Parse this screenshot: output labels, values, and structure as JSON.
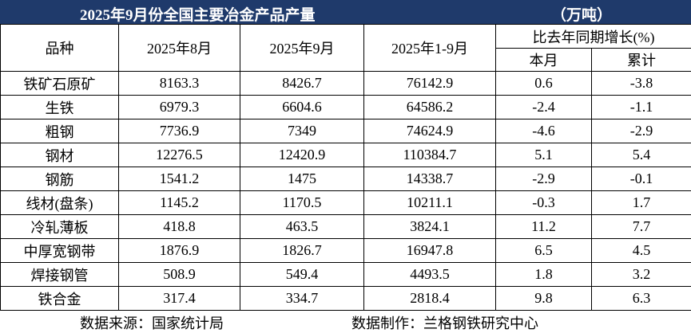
{
  "header": {
    "title": "2025年9月份全国主要冶金产品产量",
    "unit": "（万吨）"
  },
  "table": {
    "columns": [
      "品种",
      "2025年8月",
      "2025年9月",
      "2025年1-9月",
      "比去年同期增长(%)"
    ],
    "subcolumns": [
      "本月",
      "累计"
    ],
    "rows": [
      [
        "铁矿石原矿",
        "8163.3",
        "8426.7",
        "76142.9",
        "0.6",
        "-3.8"
      ],
      [
        "生铁",
        "6979.3",
        "6604.6",
        "64586.2",
        "-2.4",
        "-1.1"
      ],
      [
        "粗钢",
        "7736.9",
        "7349",
        "74624.9",
        "-4.6",
        "-2.9"
      ],
      [
        "钢材",
        "12276.5",
        "12420.9",
        "110384.7",
        "5.1",
        "5.4"
      ],
      [
        "钢筋",
        "1541.2",
        "1475",
        "14338.7",
        "-2.9",
        "-0.1"
      ],
      [
        "线材(盘条)",
        "1145.2",
        "1170.5",
        "10211.1",
        "-0.3",
        "1.7"
      ],
      [
        "冷轧薄板",
        "418.8",
        "463.5",
        "3824.1",
        "11.2",
        "7.7"
      ],
      [
        "中厚宽钢带",
        "1876.9",
        "1826.7",
        "16947.8",
        "6.5",
        "4.5"
      ],
      [
        "焊接钢管",
        "508.9",
        "549.4",
        "4493.5",
        "1.8",
        "3.2"
      ],
      [
        "铁合金",
        "317.4",
        "334.7",
        "2818.4",
        "9.8",
        "6.3"
      ]
    ]
  },
  "footer": {
    "source": "数据来源：国家统计局",
    "maker": "数据制作：兰格钢铁研究中心"
  }
}
